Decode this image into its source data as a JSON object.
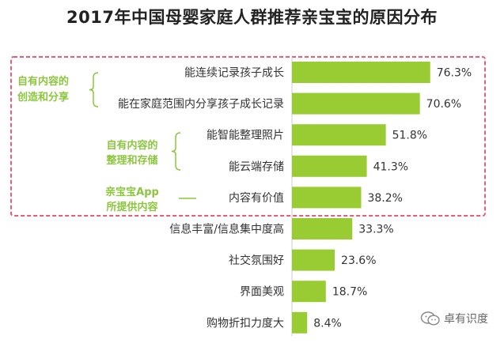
{
  "title": "2017年中国母婴家庭人群推荐亲宝宝的原因分布",
  "colors": {
    "bar": "#99cc33",
    "highlight_box": "#e85d75",
    "group_text": "#8cc63f",
    "bracket": "#8cc63f"
  },
  "groups": [
    {
      "lines": [
        "自有内容的",
        "创造和分享"
      ]
    },
    {
      "lines": [
        "自有内容的",
        "整理和存储"
      ]
    },
    {
      "lines": [
        "亲宝宝App",
        "所提供内容"
      ]
    }
  ],
  "chart_data": {
    "type": "bar",
    "orientation": "horizontal",
    "title": "2017年中国母婴家庭人群推荐亲宝宝的原因分布",
    "categories": [
      "能连续记录孩子成长",
      "能在家庭范围内分享孩子成长记录",
      "能智能整理照片",
      "能云端存储",
      "内容有价值",
      "信息丰富/信息集中度高",
      "社交氛围好",
      "界面美观",
      "购物折扣力度大"
    ],
    "values": [
      76.3,
      70.6,
      51.8,
      41.3,
      38.2,
      33.3,
      23.6,
      18.7,
      8.4
    ],
    "value_labels": [
      "76.3%",
      "70.6%",
      "51.8%",
      "41.3%",
      "38.2%",
      "33.3%",
      "23.6%",
      "18.7%",
      "8.4%"
    ],
    "unit": "%",
    "xlim": [
      0,
      100
    ]
  },
  "brand": {
    "name": "卓有识度",
    "icon": "wechat-icon"
  }
}
